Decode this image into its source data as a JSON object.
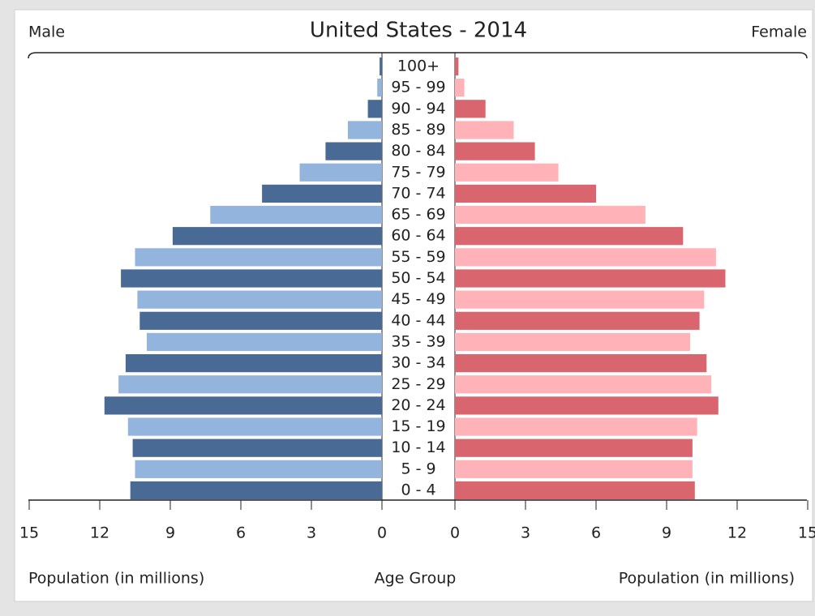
{
  "chart_data": {
    "type": "pyramid",
    "title": "United States - 2014",
    "category_label": "Age Group",
    "categories": [
      "0 - 4",
      "5 - 9",
      "10 - 14",
      "15 - 19",
      "20 - 24",
      "25 - 29",
      "30 - 34",
      "35 - 39",
      "40 - 44",
      "45 - 49",
      "50 - 54",
      "55 - 59",
      "60 - 64",
      "65 - 69",
      "70 - 74",
      "75 - 79",
      "80 - 84",
      "85 - 89",
      "90 - 94",
      "95 - 99",
      "100+"
    ],
    "xlim": [
      0,
      15
    ],
    "xticks": [
      0,
      3,
      6,
      9,
      12,
      15
    ],
    "series": [
      {
        "name": "Male",
        "side": "left",
        "axis_label": "Population (in millions)",
        "colors": [
          "#4a6a96",
          "#93b4dc"
        ],
        "values": [
          10.7,
          10.5,
          10.6,
          10.8,
          11.8,
          11.2,
          10.9,
          10.0,
          10.3,
          10.4,
          11.1,
          10.5,
          8.9,
          7.3,
          5.1,
          3.5,
          2.4,
          1.45,
          0.6,
          0.2,
          0.1
        ]
      },
      {
        "name": "Female",
        "side": "right",
        "axis_label": "Population (in millions)",
        "colors": [
          "#d9666e",
          "#ffb3b8"
        ],
        "values": [
          10.2,
          10.1,
          10.1,
          10.3,
          11.2,
          10.9,
          10.7,
          10.0,
          10.4,
          10.6,
          11.5,
          11.1,
          9.7,
          8.1,
          6.0,
          4.4,
          3.4,
          2.5,
          1.3,
          0.4,
          0.15
        ]
      }
    ]
  }
}
